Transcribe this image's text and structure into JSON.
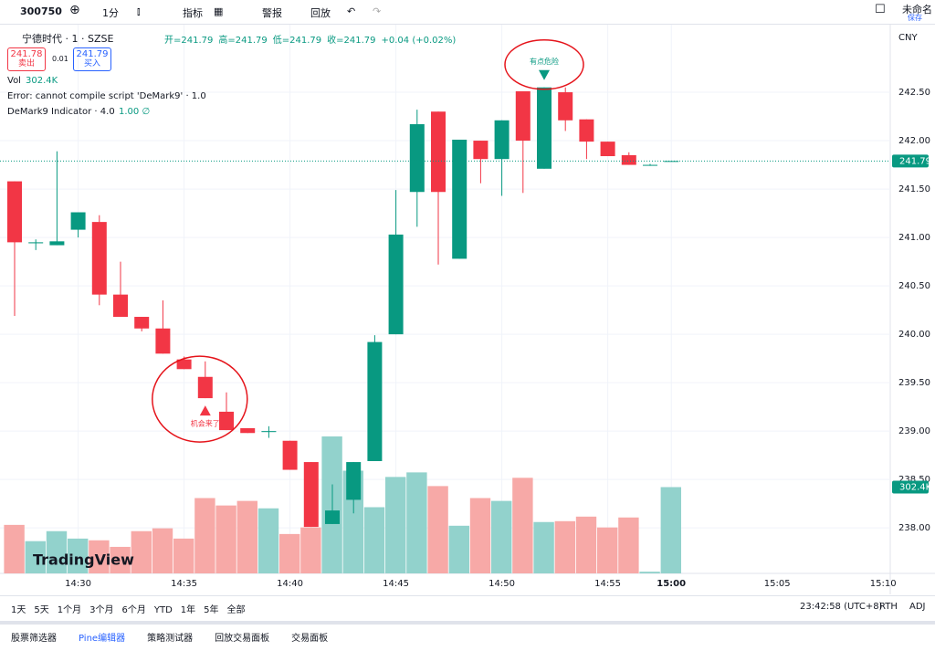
{
  "toolbar": {
    "symbol": "300750",
    "interval": "1分",
    "indicators": "指标",
    "alert": "警报",
    "replay": "回放",
    "layout_name": "未命名",
    "save": "保存"
  },
  "legend": {
    "title": "宁德时代 · 1 · SZSE",
    "ohlc": [
      "开=241.79",
      "高=241.79",
      "低=241.79",
      "收=241.79",
      "+0.04 (+0.02%)"
    ],
    "sell_price": "241.78",
    "sell": "卖出",
    "spread": "0.01",
    "buy_price": "241.79",
    "buy": "买入",
    "vol": "Vol",
    "vol_value": "302.4K",
    "error": "Error: cannot compile script 'DeMark9' · 1.0",
    "indicator": "DeMark9 Indicator · 4.0",
    "indicator_value": "1.00 ∅"
  },
  "chart_data": {
    "type": "candlestick",
    "categories": [
      null,
      null,
      null,
      "14:30",
      null,
      null,
      null,
      null,
      "14:35",
      null,
      null,
      null,
      null,
      "14:40",
      null,
      null,
      null,
      null,
      "14:45",
      null,
      null,
      null,
      null,
      "14:50",
      null,
      null,
      null,
      null,
      "14:55",
      null,
      null,
      "15:00"
    ],
    "future_xticks": [
      "15:05",
      "15:10"
    ],
    "open": [
      241.58,
      240.94,
      240.92,
      241.08,
      241.16,
      240.41,
      240.18,
      240.06,
      239.74,
      239.56,
      239.2,
      239.03,
      238.99,
      238.9,
      238.68,
      238.04,
      238.29,
      238.69,
      240.0,
      241.47,
      242.3,
      240.78,
      242.0,
      241.81,
      242.51,
      241.71,
      242.5,
      242.22,
      241.99,
      241.85,
      241.75,
      241.79
    ],
    "high": [
      241.58,
      240.98,
      241.89,
      241.26,
      241.23,
      240.75,
      240.18,
      240.35,
      239.77,
      239.72,
      239.4,
      239.03,
      239.05,
      238.9,
      238.68,
      238.45,
      238.68,
      239.99,
      241.49,
      242.32,
      242.3,
      242.01,
      242.0,
      242.21,
      242.51,
      242.55,
      242.55,
      242.22,
      241.99,
      241.88,
      241.76,
      241.79
    ],
    "low": [
      240.19,
      240.87,
      240.92,
      241.0,
      240.3,
      240.18,
      240.03,
      239.8,
      239.64,
      239.34,
      239.01,
      238.98,
      238.93,
      238.6,
      238.01,
      238.04,
      238.15,
      238.69,
      240.0,
      241.11,
      240.72,
      240.78,
      241.56,
      241.43,
      241.46,
      241.71,
      242.1,
      241.81,
      241.84,
      241.75,
      241.74,
      241.79
    ],
    "close": [
      240.95,
      240.95,
      240.96,
      241.26,
      240.41,
      240.18,
      240.06,
      239.8,
      239.64,
      239.34,
      239.01,
      238.98,
      239.0,
      238.6,
      238.01,
      238.18,
      238.68,
      239.92,
      241.03,
      242.17,
      241.47,
      242.01,
      241.81,
      242.21,
      242.0,
      242.55,
      242.21,
      241.99,
      241.84,
      241.75,
      241.75,
      241.79
    ],
    "volume": [
      170000,
      113000,
      148000,
      122000,
      116000,
      93000,
      148000,
      158000,
      122000,
      264000,
      238000,
      254000,
      228000,
      138000,
      161000,
      480000,
      360000,
      232000,
      338000,
      354000,
      306000,
      167000,
      264000,
      254000,
      335000,
      180000,
      183000,
      199000,
      161000,
      196000,
      6000,
      302400
    ],
    "volume_axis_label": "302.4K",
    "up_color": "#089981",
    "down_color": "#f23645",
    "up_volume_color": "#92d2cc",
    "down_volume_color": "#f7a9a7",
    "ylim": [
      237.53,
      243.17
    ],
    "yticks": [
      {
        "value": 238,
        "label": "238.00"
      },
      {
        "value": 238.5,
        "label": "238.50"
      },
      {
        "value": 239,
        "label": "239.00"
      },
      {
        "value": 239.5,
        "label": "239.50"
      },
      {
        "value": 240,
        "label": "240.00"
      },
      {
        "value": 240.5,
        "label": "240.50"
      },
      {
        "value": 241,
        "label": "241.00"
      },
      {
        "value": 241.5,
        "label": "241.50"
      },
      {
        "value": 242,
        "label": "242.00"
      },
      {
        "value": 242.5,
        "label": "242.50"
      }
    ],
    "currency": "CNY",
    "last_price": 241.79,
    "annotations": [
      {
        "text": "机会来了",
        "index": 9,
        "direction": "up"
      },
      {
        "text": "有点危险",
        "index": 25,
        "direction": "down"
      }
    ],
    "watermark": "TradingView"
  },
  "bottom_bar": {
    "ranges": [
      "1天",
      "5天",
      "1个月",
      "3个月",
      "6个月",
      "YTD",
      "1年",
      "5年",
      "全部"
    ],
    "clock": "23:42:58 (UTC+8)",
    "session": "RTH",
    "adjust": "ADJ"
  },
  "footer_tabs": [
    "股票筛选器",
    "Pine编辑器",
    "策略测试器",
    "回放交易面板",
    "交易面板"
  ]
}
